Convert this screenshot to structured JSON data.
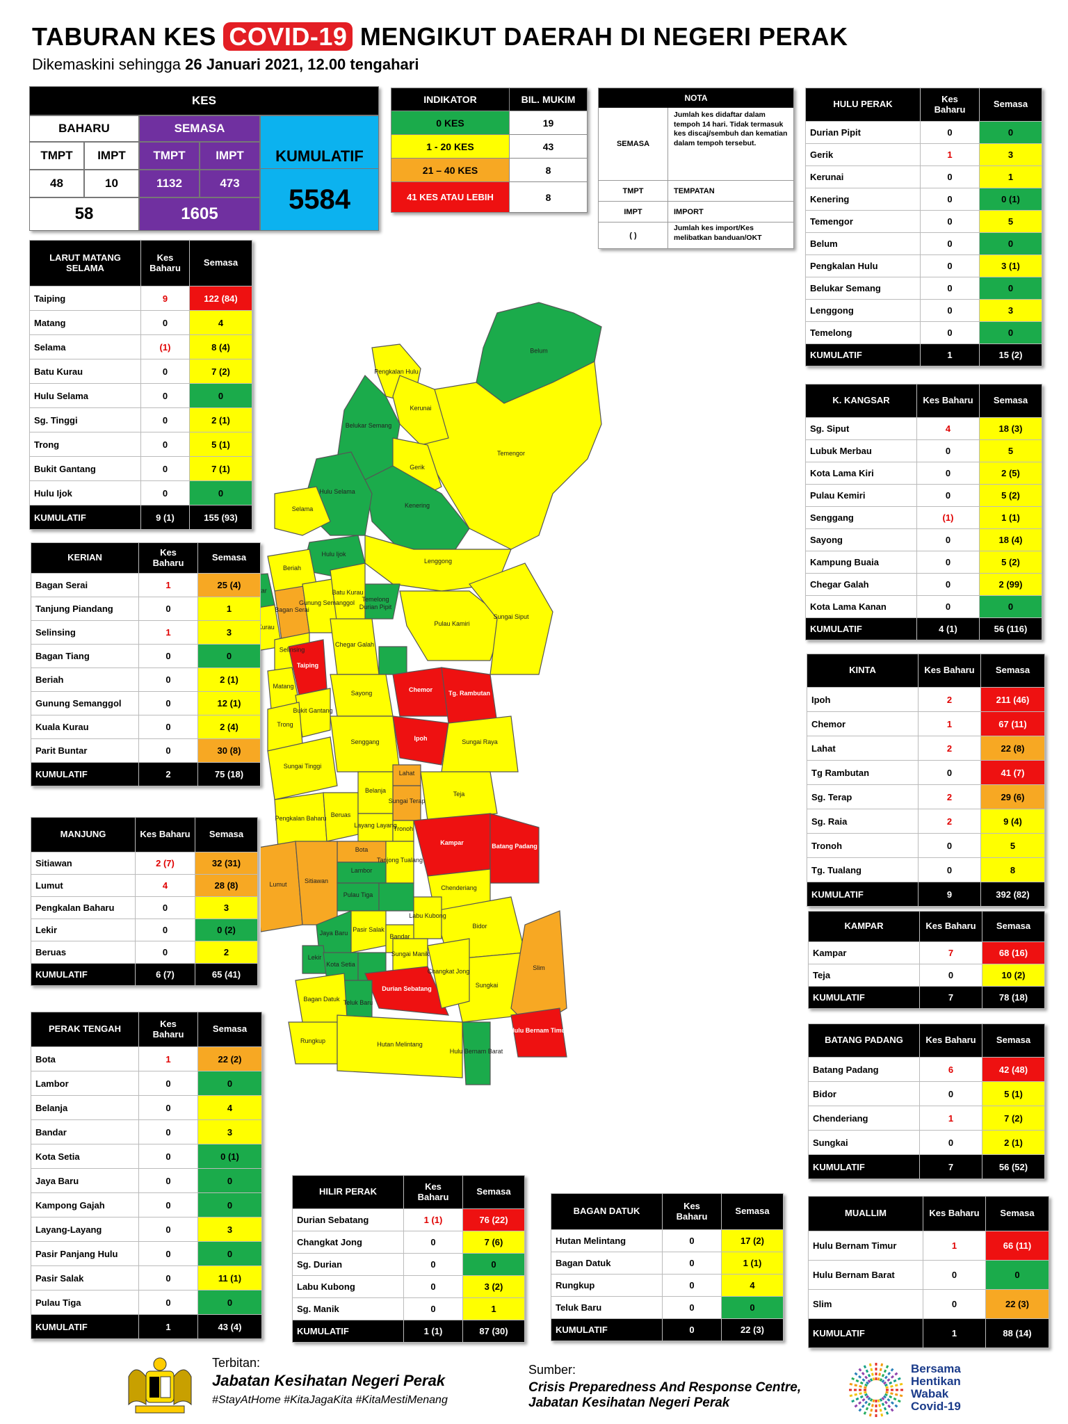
{
  "header": {
    "title_pre": "TABURAN KES",
    "title_covid": "COVID-19",
    "title_post": "MENGIKUT DAERAH DI NEGERI PERAK",
    "subtitle_pre": "Dikemaskini sehingga",
    "subtitle_bold": "26 Januari 2021, 12.00 tengahari"
  },
  "kes": {
    "title": "KES",
    "baharu": "BAHARU",
    "semasa": "SEMASA",
    "kumulatif": "KUMULATIF",
    "tmpt": "TMPT",
    "impt": "IMPT",
    "baharu_tmpt": "48",
    "baharu_impt": "10",
    "semasa_tmpt": "1132",
    "semasa_impt": "473",
    "baharu_total": "58",
    "semasa_total": "1605",
    "kumulatif_total": "5584"
  },
  "indikator": {
    "h1": "INDIKATOR",
    "h2": "BIL. MUKIM",
    "rows": [
      {
        "label": "0 KES",
        "count": "19",
        "color": "green"
      },
      {
        "label": "1 - 20 KES",
        "count": "43",
        "color": "yellow"
      },
      {
        "label": "21 – 40 KES",
        "count": "8",
        "color": "orange"
      },
      {
        "label": "41 KES ATAU LEBIH",
        "count": "8",
        "color": "red"
      }
    ]
  },
  "nota": {
    "title": "NOTA",
    "semasa_key": "SEMASA",
    "semasa_text": "Jumlah kes didaftar dalam tempoh 14 hari. Tidak termasuk kes discaj/sembuh dan kematian dalam tempoh tersebut.",
    "tmpt_key": "TMPT",
    "tmpt_text": "TEMPATAN",
    "impt_key": "IMPT",
    "impt_text": "IMPORT",
    "paren_key": "( )",
    "paren_text": "Jumlah kes import/Kes melibatkan banduan/OKT"
  },
  "col_labels": {
    "baharu": "Kes Baharu",
    "semasa": "Semasa"
  },
  "colors": {
    "green": "#1bab4b",
    "yellow": "#ffff00",
    "orange": "#f7a823",
    "red": "#ee1111"
  },
  "tables": {
    "larut": {
      "title": "LARUT MATANG SELAMA",
      "rows": [
        {
          "n": "Taiping",
          "b": "9",
          "s": "122 (84)",
          "c": "red",
          "br": true
        },
        {
          "n": "Matang",
          "b": "0",
          "s": "4",
          "c": "yellow"
        },
        {
          "n": "Selama",
          "b": "(1)",
          "s": "8 (4)",
          "c": "yellow",
          "br": true
        },
        {
          "n": "Batu Kurau",
          "b": "0",
          "s": "7 (2)",
          "c": "yellow"
        },
        {
          "n": "Hulu Selama",
          "b": "0",
          "s": "0",
          "c": "green"
        },
        {
          "n": "Sg. Tinggi",
          "b": "0",
          "s": "2 (1)",
          "c": "yellow"
        },
        {
          "n": "Trong",
          "b": "0",
          "s": "5 (1)",
          "c": "yellow"
        },
        {
          "n": "Bukit Gantang",
          "b": "0",
          "s": "7 (1)",
          "c": "yellow"
        },
        {
          "n": "Hulu Ijok",
          "b": "0",
          "s": "0",
          "c": "green"
        }
      ],
      "foot": {
        "n": "KUMULATIF",
        "b": "9 (1)",
        "s": "155 (93)"
      }
    },
    "kerian": {
      "title": "KERIAN",
      "rows": [
        {
          "n": "Bagan Serai",
          "b": "1",
          "s": "25 (4)",
          "c": "orange",
          "br": true
        },
        {
          "n": "Tanjung Piandang",
          "b": "0",
          "s": "1",
          "c": "yellow"
        },
        {
          "n": "Selinsing",
          "b": "1",
          "s": "3",
          "c": "yellow",
          "br": true
        },
        {
          "n": "Bagan Tiang",
          "b": "0",
          "s": "0",
          "c": "green"
        },
        {
          "n": "Beriah",
          "b": "0",
          "s": "2 (1)",
          "c": "yellow"
        },
        {
          "n": "Gunung Semanggol",
          "b": "0",
          "s": "12 (1)",
          "c": "yellow"
        },
        {
          "n": "Kuala Kurau",
          "b": "0",
          "s": "2 (4)",
          "c": "yellow"
        },
        {
          "n": "Parit Buntar",
          "b": "0",
          "s": "30 (8)",
          "c": "orange"
        }
      ],
      "foot": {
        "n": "KUMULATIF",
        "b": "2",
        "s": "75 (18)"
      }
    },
    "manjung": {
      "title": "MANJUNG",
      "rows": [
        {
          "n": "Sitiawan",
          "b": "2 (7)",
          "s": "32 (31)",
          "c": "orange",
          "br": true
        },
        {
          "n": "Lumut",
          "b": "4",
          "s": "28 (8)",
          "c": "orange",
          "br": true
        },
        {
          "n": "Pengkalan Baharu",
          "b": "0",
          "s": "3",
          "c": "yellow"
        },
        {
          "n": "Lekir",
          "b": "0",
          "s": "0 (2)",
          "c": "green"
        },
        {
          "n": "Beruas",
          "b": "0",
          "s": "2",
          "c": "yellow"
        }
      ],
      "foot": {
        "n": "KUMULATIF",
        "b": "6 (7)",
        "s": "65 (41)"
      }
    },
    "tengah": {
      "title": "PERAK TENGAH",
      "rows": [
        {
          "n": "Bota",
          "b": "1",
          "s": "22 (2)",
          "c": "orange",
          "br": true
        },
        {
          "n": "Lambor",
          "b": "0",
          "s": "0",
          "c": "green"
        },
        {
          "n": "Belanja",
          "b": "0",
          "s": "4",
          "c": "yellow"
        },
        {
          "n": "Bandar",
          "b": "0",
          "s": "3",
          "c": "yellow"
        },
        {
          "n": "Kota Setia",
          "b": "0",
          "s": "0 (1)",
          "c": "green"
        },
        {
          "n": "Jaya Baru",
          "b": "0",
          "s": "0",
          "c": "green"
        },
        {
          "n": "Kampong Gajah",
          "b": "0",
          "s": "0",
          "c": "green"
        },
        {
          "n": "Layang-Layang",
          "b": "0",
          "s": "3",
          "c": "yellow"
        },
        {
          "n": "Pasir Panjang Hulu",
          "b": "0",
          "s": "0",
          "c": "green"
        },
        {
          "n": "Pasir Salak",
          "b": "0",
          "s": "11 (1)",
          "c": "yellow"
        },
        {
          "n": "Pulau Tiga",
          "b": "0",
          "s": "0",
          "c": "green"
        }
      ],
      "foot": {
        "n": "KUMULATIF",
        "b": "1",
        "s": "43 (4)"
      }
    },
    "hilir": {
      "title": "HILIR PERAK",
      "rows": [
        {
          "n": "Durian Sebatang",
          "b": "1 (1)",
          "s": "76 (22)",
          "c": "red",
          "br": true
        },
        {
          "n": "Changkat Jong",
          "b": "0",
          "s": "7 (6)",
          "c": "yellow"
        },
        {
          "n": "Sg. Durian",
          "b": "0",
          "s": "0",
          "c": "green"
        },
        {
          "n": "Labu Kubong",
          "b": "0",
          "s": "3 (2)",
          "c": "yellow"
        },
        {
          "n": "Sg. Manik",
          "b": "0",
          "s": "1",
          "c": "yellow"
        }
      ],
      "foot": {
        "n": "KUMULATIF",
        "b": "1 (1)",
        "s": "87 (30)"
      }
    },
    "datuk": {
      "title": "BAGAN DATUK",
      "rows": [
        {
          "n": "Hutan Melintang",
          "b": "0",
          "s": "17 (2)",
          "c": "yellow"
        },
        {
          "n": "Bagan Datuk",
          "b": "0",
          "s": "1 (1)",
          "c": "yellow"
        },
        {
          "n": "Rungkup",
          "b": "0",
          "s": "4",
          "c": "yellow"
        },
        {
          "n": "Teluk Baru",
          "b": "0",
          "s": "0",
          "c": "green"
        }
      ],
      "foot": {
        "n": "KUMULATIF",
        "b": "0",
        "s": "22 (3)"
      }
    },
    "hulu": {
      "title": "HULU PERAK",
      "rows": [
        {
          "n": "Durian Pipit",
          "b": "0",
          "s": "0",
          "c": "green"
        },
        {
          "n": "Gerik",
          "b": "1",
          "s": "3",
          "c": "yellow",
          "br": true
        },
        {
          "n": "Kerunai",
          "b": "0",
          "s": "1",
          "c": "yellow"
        },
        {
          "n": "Kenering",
          "b": "0",
          "s": "0 (1)",
          "c": "green"
        },
        {
          "n": "Temengor",
          "b": "0",
          "s": "5",
          "c": "yellow"
        },
        {
          "n": "Belum",
          "b": "0",
          "s": "0",
          "c": "green"
        },
        {
          "n": "Pengkalan Hulu",
          "b": "0",
          "s": "3 (1)",
          "c": "yellow"
        },
        {
          "n": "Belukar Semang",
          "b": "0",
          "s": "0",
          "c": "green"
        },
        {
          "n": "Lenggong",
          "b": "0",
          "s": "3",
          "c": "yellow"
        },
        {
          "n": "Temelong",
          "b": "0",
          "s": "0",
          "c": "green"
        }
      ],
      "foot": {
        "n": "KUMULATIF",
        "b": "1",
        "s": "15 (2)"
      }
    },
    "kangsar": {
      "title": "K. KANGSAR",
      "rows": [
        {
          "n": "Sg. Siput",
          "b": "4",
          "s": "18 (3)",
          "c": "yellow",
          "br": true
        },
        {
          "n": "Lubuk Merbau",
          "b": "0",
          "s": "5",
          "c": "yellow"
        },
        {
          "n": "Kota Lama Kiri",
          "b": "0",
          "s": "2 (5)",
          "c": "yellow"
        },
        {
          "n": "Pulau Kemiri",
          "b": "0",
          "s": "5 (2)",
          "c": "yellow"
        },
        {
          "n": "Senggang",
          "b": "(1)",
          "s": "1 (1)",
          "c": "yellow",
          "br": true
        },
        {
          "n": "Sayong",
          "b": "0",
          "s": "18 (4)",
          "c": "yellow"
        },
        {
          "n": "Kampung Buaia",
          "b": "0",
          "s": "5 (2)",
          "c": "yellow"
        },
        {
          "n": "Chegar Galah",
          "b": "0",
          "s": "2 (99)",
          "c": "yellow"
        },
        {
          "n": "Kota Lama Kanan",
          "b": "0",
          "s": "0",
          "c": "green"
        }
      ],
      "foot": {
        "n": "KUMULATIF",
        "b": "4 (1)",
        "s": "56 (116)"
      }
    },
    "kinta": {
      "title": "KINTA",
      "rows": [
        {
          "n": "Ipoh",
          "b": "2",
          "s": "211 (46)",
          "c": "red",
          "br": true
        },
        {
          "n": "Chemor",
          "b": "1",
          "s": "67 (11)",
          "c": "red",
          "br": true
        },
        {
          "n": "Lahat",
          "b": "2",
          "s": "22 (8)",
          "c": "orange",
          "br": true
        },
        {
          "n": "Tg Rambutan",
          "b": "0",
          "s": "41 (7)",
          "c": "red"
        },
        {
          "n": "Sg. Terap",
          "b": "2",
          "s": "29 (6)",
          "c": "orange",
          "br": true
        },
        {
          "n": "Sg. Raia",
          "b": "2",
          "s": "9 (4)",
          "c": "yellow",
          "br": true
        },
        {
          "n": "Tronoh",
          "b": "0",
          "s": "5",
          "c": "yellow"
        },
        {
          "n": "Tg. Tualang",
          "b": "0",
          "s": "8",
          "c": "yellow"
        }
      ],
      "foot": {
        "n": "KUMULATIF",
        "b": "9",
        "s": "392 (82)"
      }
    },
    "kampar": {
      "title": "KAMPAR",
      "rows": [
        {
          "n": "Kampar",
          "b": "7",
          "s": "68 (16)",
          "c": "red",
          "br": true
        },
        {
          "n": "Teja",
          "b": "0",
          "s": "10 (2)",
          "c": "yellow"
        }
      ],
      "foot": {
        "n": "KUMULATIF",
        "b": "7",
        "s": "78 (18)"
      }
    },
    "batang": {
      "title": "BATANG PADANG",
      "rows": [
        {
          "n": "Batang Padang",
          "b": "6",
          "s": "42 (48)",
          "c": "red",
          "br": true
        },
        {
          "n": "Bidor",
          "b": "0",
          "s": "5 (1)",
          "c": "yellow"
        },
        {
          "n": "Chenderiang",
          "b": "1",
          "s": "7 (2)",
          "c": "yellow",
          "br": true
        },
        {
          "n": "Sungkai",
          "b": "0",
          "s": "2 (1)",
          "c": "yellow"
        }
      ],
      "foot": {
        "n": "KUMULATIF",
        "b": "7",
        "s": "56 (52)"
      }
    },
    "muallim": {
      "title": "MUALLIM",
      "rows": [
        {
          "n": "Hulu Bernam Timur",
          "b": "1",
          "s": "66 (11)",
          "c": "red",
          "br": true
        },
        {
          "n": "Hulu Bernam Barat",
          "b": "0",
          "s": "0",
          "c": "green"
        },
        {
          "n": "Slim",
          "b": "0",
          "s": "22 (3)",
          "c": "orange"
        }
      ],
      "foot": {
        "n": "KUMULATIF",
        "b": "1",
        "s": "88 (14)"
      }
    }
  },
  "map_labels": [
    "Belum",
    "Pengkalan Hulu",
    "Belukar Semang",
    "Kerunai",
    "Gerik",
    "Temengor",
    "Kenering",
    "Hulu Selama",
    "Selama",
    "Hulu Ijok",
    "Lenggong",
    "Temelong",
    "Durian Pipit",
    "Pulau Kamiri",
    "Beriah",
    "Batu Kurau",
    "Parit Buntar",
    "Bagan Serai",
    "Kuala Kurau",
    "Gunung Semanggol",
    "Selinsing",
    "Taiping",
    "Chegar Galah",
    "Matang",
    "Sungai Siput",
    "Bukit Gantang",
    "Sayong",
    "Trong",
    "Chemor",
    "Tg. Rambutan",
    "Ipoh",
    "Senggang",
    "Sungai Tinggi",
    "Lahat",
    "Sungai Raya",
    "Sungai Terap",
    "Teja",
    "Pengkalan Baharu",
    "Beruas",
    "Belanja",
    "Layang Layang",
    "Tronoh",
    "Bota",
    "Kampar",
    "Tanjong Tualang",
    "Lumut",
    "Sitiawan",
    "Lambor",
    "Batang Padang",
    "Pulau Tiga",
    "Chenderiang",
    "Jaya Baru",
    "Pasir Salak",
    "Labu Kubong",
    "Bandar",
    "Sungai Manik",
    "Bidor",
    "Lekir",
    "Kota Setia",
    "Durian Sebatang",
    "Changkat Jong",
    "Bagan Datuk",
    "Teluk Baru",
    "Sungkai",
    "Slim",
    "Rungkup",
    "Hutan Melintang",
    "Hulu Bernam Barat",
    "Hulu Bernam Timur"
  ],
  "footer": {
    "terbitan_label": "Terbitan:",
    "terbitan_org": "Jabatan Kesihatan Negeri Perak",
    "hashtags": "#StayAtHome #KitaJagaKita #KitaMestiMenang",
    "sumber_label": "Sumber:",
    "sumber_1": "Crisis Preparedness And Response Centre,",
    "sumber_2": "Jabatan Kesihatan Negeri Perak",
    "logo_text_1": "Bersama",
    "logo_text_2": "Hentikan",
    "logo_text_3": "Wabak",
    "logo_text_4": "Covid-19"
  }
}
